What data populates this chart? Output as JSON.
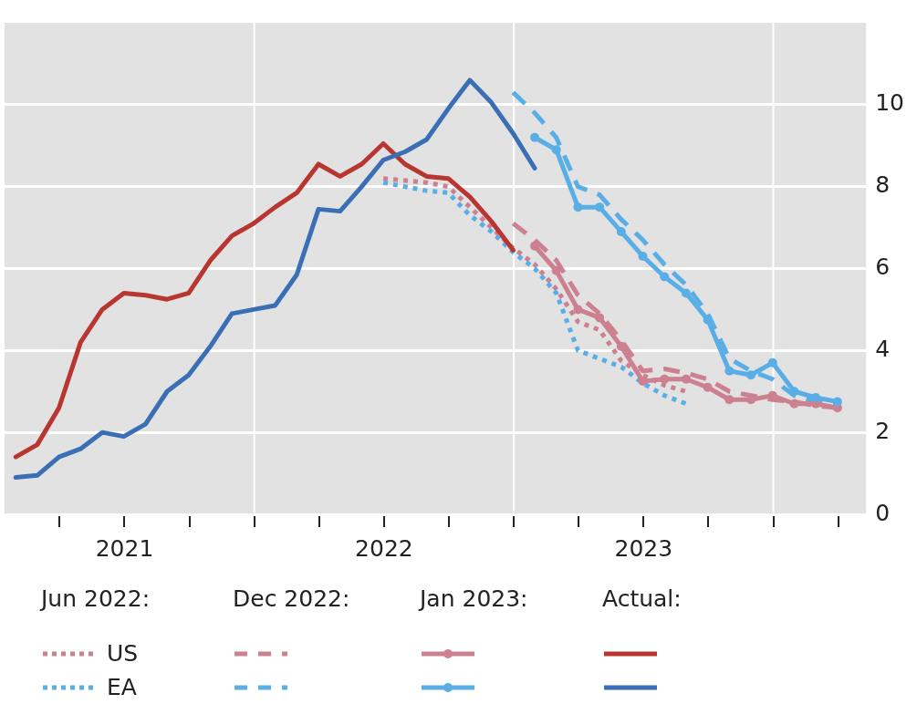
{
  "chart_data": {
    "type": "line",
    "xlim": [
      "2021-01-15",
      "2024-05-10"
    ],
    "ylim": [
      0,
      12
    ],
    "yticks": [
      0,
      2,
      4,
      6,
      8,
      10
    ],
    "xticks": [
      {
        "value": "2021-04-01",
        "label": null
      },
      {
        "value": "2021-07-01",
        "label": "2021"
      },
      {
        "value": "2021-10-01",
        "label": null
      },
      {
        "value": "2022-01-01",
        "label": null
      },
      {
        "value": "2022-04-01",
        "label": null
      },
      {
        "value": "2022-07-01",
        "label": "2022"
      },
      {
        "value": "2022-10-01",
        "label": null
      },
      {
        "value": "2023-01-01",
        "label": null
      },
      {
        "value": "2023-04-01",
        "label": null
      },
      {
        "value": "2023-07-01",
        "label": "2023"
      },
      {
        "value": "2023-10-01",
        "label": null
      },
      {
        "value": "2024-01-01",
        "label": null
      },
      {
        "value": "2024-04-01",
        "label": null
      }
    ],
    "grid": "y",
    "legend": "bottom",
    "marker": "none",
    "line_style": "solid",
    "ref_lines": [
      {
        "axis": "x",
        "value": "2022-01-01",
        "color": "#ffffff"
      },
      {
        "axis": "x",
        "value": "2023-01-01",
        "color": "#ffffff"
      },
      {
        "axis": "x",
        "value": "2024-01-01",
        "color": "#ffffff"
      }
    ],
    "annotations": [
      "Jun 2022:",
      "Dec 2022:",
      "Jan 2023:",
      "Actual:"
    ],
    "series": [
      {
        "name": "US",
        "color": "#cc8090",
        "line_style": "dotted",
        "x": [
          "2022-06-30",
          "2022-07-31",
          "2022-08-31",
          "2022-09-30",
          "2022-10-31",
          "2022-11-30",
          "2022-12-31",
          "2023-01-31",
          "2023-02-28",
          "2023-03-31",
          "2023-04-30",
          "2023-05-31",
          "2023-06-30",
          "2023-07-31",
          "2023-08-31"
        ],
        "values": [
          8.2,
          8.15,
          8.1,
          8.0,
          7.5,
          7.0,
          6.5,
          6.1,
          5.5,
          4.7,
          4.5,
          3.75,
          3.4,
          3.15,
          3.0
        ]
      },
      {
        "name": "EA",
        "color": "#5aaee6",
        "line_style": "dotted",
        "x": [
          "2022-06-30",
          "2022-07-31",
          "2022-08-31",
          "2022-09-30",
          "2022-10-31",
          "2022-11-30",
          "2022-12-31",
          "2023-01-31",
          "2023-02-28",
          "2023-03-31",
          "2023-04-30",
          "2023-05-31",
          "2023-06-30",
          "2023-07-31",
          "2023-08-31"
        ],
        "values": [
          8.1,
          8.0,
          7.9,
          7.85,
          7.3,
          6.9,
          6.4,
          6.0,
          5.4,
          4.0,
          3.8,
          3.6,
          3.2,
          2.9,
          2.7
        ]
      },
      {
        "color": "#cc8090",
        "line_style": "dashed",
        "x": [
          "2022-12-31",
          "2023-01-31",
          "2023-02-28",
          "2023-03-31",
          "2023-04-30",
          "2023-05-31",
          "2023-06-30",
          "2023-07-31",
          "2023-08-31",
          "2023-09-30",
          "2023-10-31",
          "2023-11-30",
          "2023-12-31",
          "2024-01-31",
          "2024-02-29",
          "2024-03-31"
        ],
        "values": [
          7.1,
          6.7,
          6.2,
          5.35,
          4.9,
          4.25,
          3.5,
          3.55,
          3.45,
          3.3,
          3.0,
          2.9,
          2.8,
          2.75,
          2.65,
          2.6
        ]
      },
      {
        "color": "#5aaee6",
        "line_style": "dashed",
        "x": [
          "2022-12-31",
          "2023-01-31",
          "2023-02-28",
          "2023-03-31",
          "2023-04-30",
          "2023-05-31",
          "2023-06-30",
          "2023-07-31",
          "2023-08-31",
          "2023-09-30",
          "2023-10-31",
          "2023-11-30",
          "2023-12-31",
          "2024-01-31",
          "2024-02-29",
          "2024-03-31"
        ],
        "values": [
          10.3,
          9.8,
          9.2,
          8.0,
          7.8,
          7.2,
          6.7,
          6.1,
          5.6,
          4.9,
          3.8,
          3.5,
          3.3,
          2.9,
          2.75,
          2.7
        ]
      },
      {
        "color": "#cc8090",
        "marker": "circle",
        "x": [
          "2023-01-31",
          "2023-02-28",
          "2023-03-31",
          "2023-04-30",
          "2023-05-31",
          "2023-06-30",
          "2023-07-31",
          "2023-08-31",
          "2023-09-30",
          "2023-10-31",
          "2023-11-30",
          "2023-12-31",
          "2024-01-31",
          "2024-02-29",
          "2024-03-31"
        ],
        "values": [
          6.55,
          5.95,
          5.0,
          4.8,
          4.1,
          3.25,
          3.3,
          3.3,
          3.1,
          2.8,
          2.8,
          2.9,
          2.7,
          2.7,
          2.6
        ]
      },
      {
        "color": "#5aaee6",
        "marker": "circle",
        "x": [
          "2023-01-31",
          "2023-02-28",
          "2023-03-31",
          "2023-04-30",
          "2023-05-31",
          "2023-06-30",
          "2023-07-31",
          "2023-08-31",
          "2023-09-30",
          "2023-10-31",
          "2023-11-30",
          "2023-12-31",
          "2024-01-31",
          "2024-02-29",
          "2024-03-31"
        ],
        "values": [
          9.2,
          8.9,
          7.5,
          7.5,
          6.9,
          6.3,
          5.8,
          5.4,
          4.75,
          3.5,
          3.4,
          3.7,
          3.0,
          2.85,
          2.75
        ]
      },
      {
        "color": "#b83530",
        "x": [
          "2021-01-31",
          "2021-02-28",
          "2021-03-31",
          "2021-04-30",
          "2021-05-31",
          "2021-06-30",
          "2021-07-31",
          "2021-08-31",
          "2021-09-30",
          "2021-10-31",
          "2021-11-30",
          "2021-12-31",
          "2022-01-31",
          "2022-02-28",
          "2022-03-31",
          "2022-04-30",
          "2022-05-31",
          "2022-06-30",
          "2022-07-31",
          "2022-08-31",
          "2022-09-30",
          "2022-10-31",
          "2022-11-30",
          "2022-12-31"
        ],
        "values": [
          1.4,
          1.7,
          2.6,
          4.2,
          5.0,
          5.4,
          5.35,
          5.25,
          5.4,
          6.2,
          6.8,
          7.1,
          7.5,
          7.85,
          8.55,
          8.25,
          8.55,
          9.05,
          8.55,
          8.25,
          8.2,
          7.75,
          7.15,
          6.45
        ]
      },
      {
        "color": "#3a6fb5",
        "x": [
          "2021-01-31",
          "2021-02-28",
          "2021-03-31",
          "2021-04-30",
          "2021-05-31",
          "2021-06-30",
          "2021-07-31",
          "2021-08-31",
          "2021-09-30",
          "2021-10-31",
          "2021-11-30",
          "2021-12-31",
          "2022-01-31",
          "2022-02-28",
          "2022-03-31",
          "2022-04-30",
          "2022-05-31",
          "2022-06-30",
          "2022-07-31",
          "2022-08-31",
          "2022-09-30",
          "2022-10-31",
          "2022-11-30",
          "2022-12-31",
          "2023-01-31"
        ],
        "values": [
          0.9,
          0.95,
          1.4,
          1.6,
          2.0,
          1.9,
          2.2,
          3.0,
          3.4,
          4.1,
          4.9,
          5.0,
          5.1,
          5.85,
          7.45,
          7.4,
          8.0,
          8.65,
          8.85,
          9.15,
          9.9,
          10.6,
          10.05,
          9.3,
          8.45
        ]
      }
    ]
  }
}
